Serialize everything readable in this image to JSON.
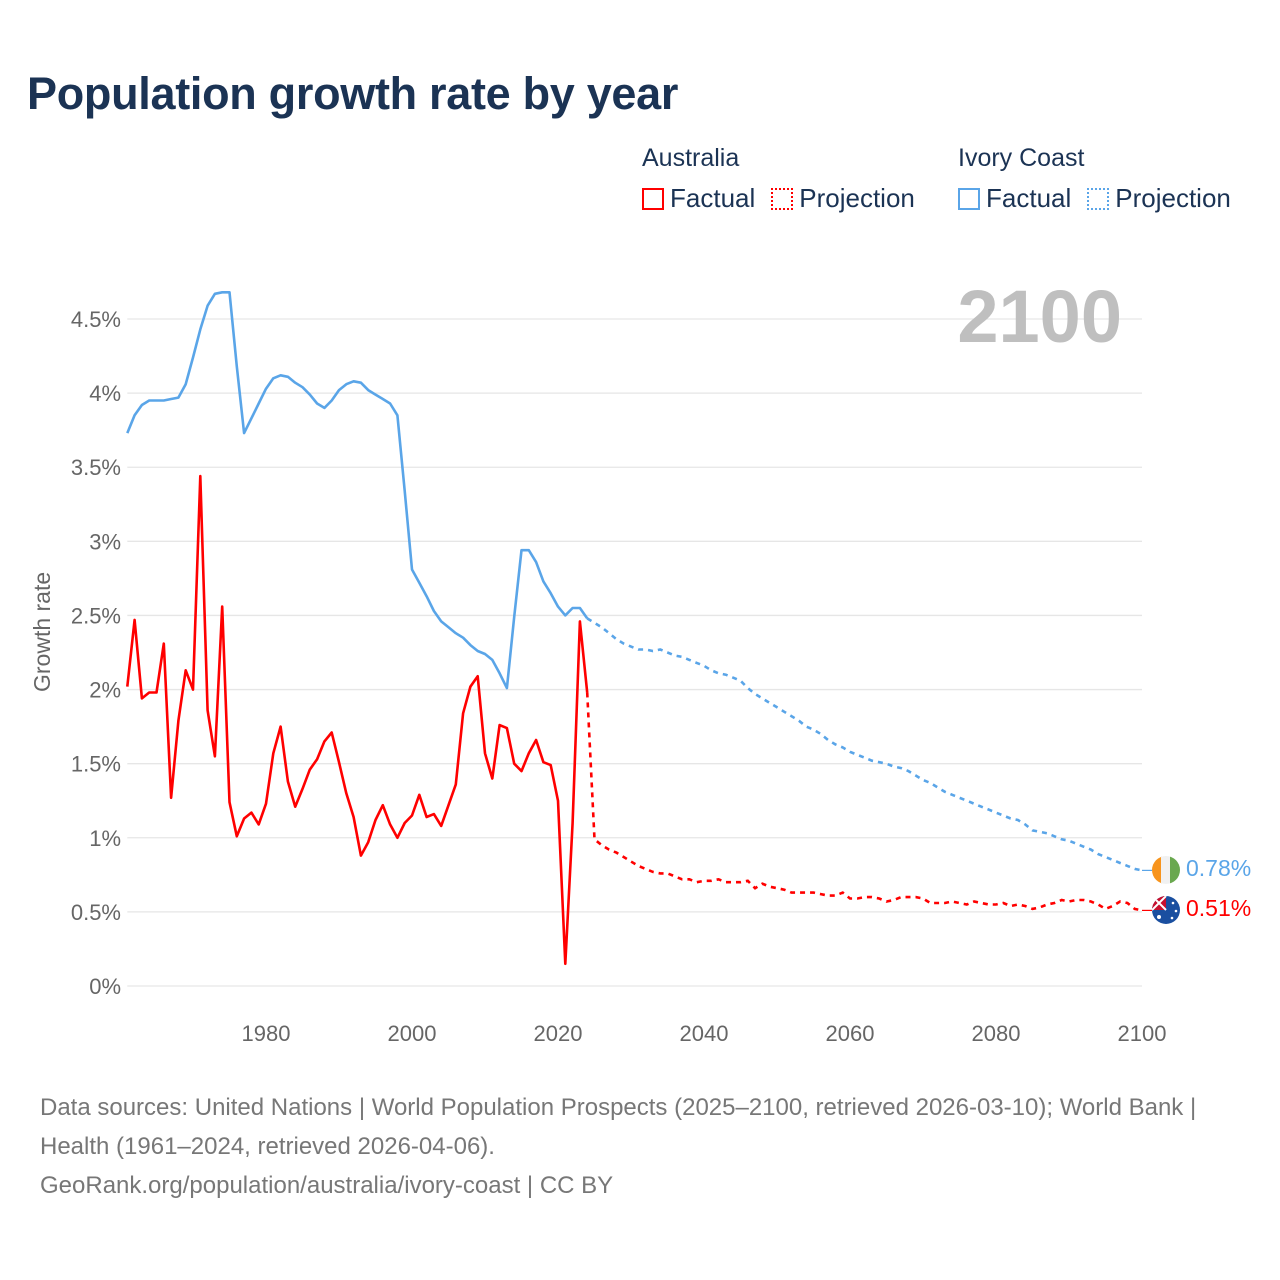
{
  "title": "Population growth rate by year",
  "legend": {
    "groups": [
      {
        "country": "Australia",
        "factual": "Factual",
        "projection": "Projection",
        "color": "#ff0000"
      },
      {
        "country": "Ivory Coast",
        "factual": "Factual",
        "projection": "Projection",
        "color": "#5aa5e8"
      }
    ]
  },
  "footer": {
    "sources": "Data sources: United Nations | World Population Prospects (2025–2100, retrieved 2026-03-10); World Bank | Health (1961–2024, retrieved 2026-04-06).",
    "url": "GeoRank.org/population/australia/ivory-coast | CC BY"
  },
  "chart_data": {
    "type": "line",
    "title": "Population growth rate by year",
    "xlabel": "",
    "ylabel": "Growth rate",
    "current_year_label": "2100",
    "xlim": [
      1961,
      2100
    ],
    "ylim": [
      0,
      4.5
    ],
    "grid": true,
    "x_ticks": [
      1980,
      2000,
      2020,
      2040,
      2060,
      2080,
      2100
    ],
    "y_ticks": [
      {
        "value": 0,
        "label": "0%"
      },
      {
        "value": 0.5,
        "label": "0.5%"
      },
      {
        "value": 1,
        "label": "1%"
      },
      {
        "value": 1.5,
        "label": "1.5%"
      },
      {
        "value": 2,
        "label": "2%"
      },
      {
        "value": 2.5,
        "label": "2.5%"
      },
      {
        "value": 3,
        "label": "3%"
      },
      {
        "value": 3.5,
        "label": "3.5%"
      },
      {
        "value": 4,
        "label": "4%"
      },
      {
        "value": 4.5,
        "label": "4.5%"
      }
    ],
    "legend_position": "top-right",
    "series": [
      {
        "name": "Australia",
        "color": "#ff0000",
        "end_label": "0.51%",
        "factual_start": 1961,
        "factual": [
          2.02,
          2.47,
          1.94,
          1.98,
          1.98,
          2.31,
          1.27,
          1.79,
          2.13,
          2.0,
          3.44,
          1.86,
          1.55,
          2.56,
          1.24,
          1.01,
          1.13,
          1.17,
          1.09,
          1.23,
          1.57,
          1.75,
          1.38,
          1.21,
          1.33,
          1.46,
          1.53,
          1.65,
          1.71,
          1.51,
          1.3,
          1.14,
          0.88,
          0.97,
          1.12,
          1.22,
          1.09,
          1.0,
          1.1,
          1.15,
          1.29,
          1.14,
          1.16,
          1.08,
          1.22,
          1.36,
          1.84,
          2.02,
          2.09,
          1.57,
          1.4,
          1.76,
          1.74,
          1.5,
          1.45,
          1.57,
          1.66,
          1.51,
          1.49,
          1.25,
          0.15,
          1.1,
          2.46,
          1.98
        ],
        "projection_start": 2025,
        "projection": [
          0.99,
          0.95,
          0.92,
          0.9,
          0.87,
          0.84,
          0.81,
          0.79,
          0.77,
          0.76,
          0.76,
          0.74,
          0.72,
          0.72,
          0.7,
          0.71,
          0.71,
          0.72,
          0.7,
          0.7,
          0.7,
          0.71,
          0.66,
          0.69,
          0.67,
          0.66,
          0.65,
          0.63,
          0.63,
          0.63,
          0.63,
          0.62,
          0.61,
          0.61,
          0.63,
          0.59,
          0.59,
          0.6,
          0.6,
          0.59,
          0.57,
          0.58,
          0.6,
          0.6,
          0.6,
          0.59,
          0.56,
          0.56,
          0.56,
          0.57,
          0.56,
          0.55,
          0.57,
          0.56,
          0.55,
          0.55,
          0.56,
          0.54,
          0.55,
          0.54,
          0.52,
          0.53,
          0.55,
          0.56,
          0.58,
          0.57,
          0.58,
          0.58,
          0.57,
          0.55,
          0.52,
          0.54,
          0.57,
          0.56,
          0.52,
          0.51
        ]
      },
      {
        "name": "Ivory Coast",
        "color": "#5aa5e8",
        "end_label": "0.78%",
        "factual_start": 1961,
        "factual": [
          3.73,
          3.85,
          3.92,
          3.95,
          3.95,
          3.95,
          3.96,
          3.97,
          4.06,
          4.24,
          4.43,
          4.59,
          4.67,
          4.68,
          4.68,
          4.18,
          3.73,
          3.83,
          3.93,
          4.03,
          4.1,
          4.12,
          4.11,
          4.07,
          4.04,
          3.99,
          3.93,
          3.9,
          3.95,
          4.02,
          4.06,
          4.08,
          4.07,
          4.02,
          3.99,
          3.96,
          3.93,
          3.85,
          3.34,
          2.81,
          2.72,
          2.63,
          2.53,
          2.46,
          2.42,
          2.38,
          2.35,
          2.3,
          2.26,
          2.24,
          2.2,
          2.11,
          2.01,
          2.49,
          2.94,
          2.94,
          2.86,
          2.73,
          2.65,
          2.56,
          2.5,
          2.55,
          2.55,
          2.48
        ],
        "projection_start": 2025,
        "projection": [
          2.45,
          2.42,
          2.38,
          2.34,
          2.31,
          2.29,
          2.27,
          2.27,
          2.26,
          2.27,
          2.25,
          2.23,
          2.22,
          2.2,
          2.18,
          2.16,
          2.13,
          2.11,
          2.1,
          2.08,
          2.06,
          2.01,
          1.97,
          1.94,
          1.91,
          1.88,
          1.85,
          1.82,
          1.79,
          1.75,
          1.73,
          1.7,
          1.66,
          1.63,
          1.61,
          1.58,
          1.56,
          1.54,
          1.52,
          1.51,
          1.5,
          1.48,
          1.47,
          1.45,
          1.42,
          1.39,
          1.37,
          1.34,
          1.31,
          1.29,
          1.27,
          1.25,
          1.23,
          1.21,
          1.19,
          1.17,
          1.15,
          1.13,
          1.12,
          1.09,
          1.05,
          1.04,
          1.03,
          1.01,
          0.99,
          0.98,
          0.96,
          0.94,
          0.92,
          0.89,
          0.87,
          0.85,
          0.83,
          0.81,
          0.79,
          0.78
        ]
      }
    ]
  }
}
